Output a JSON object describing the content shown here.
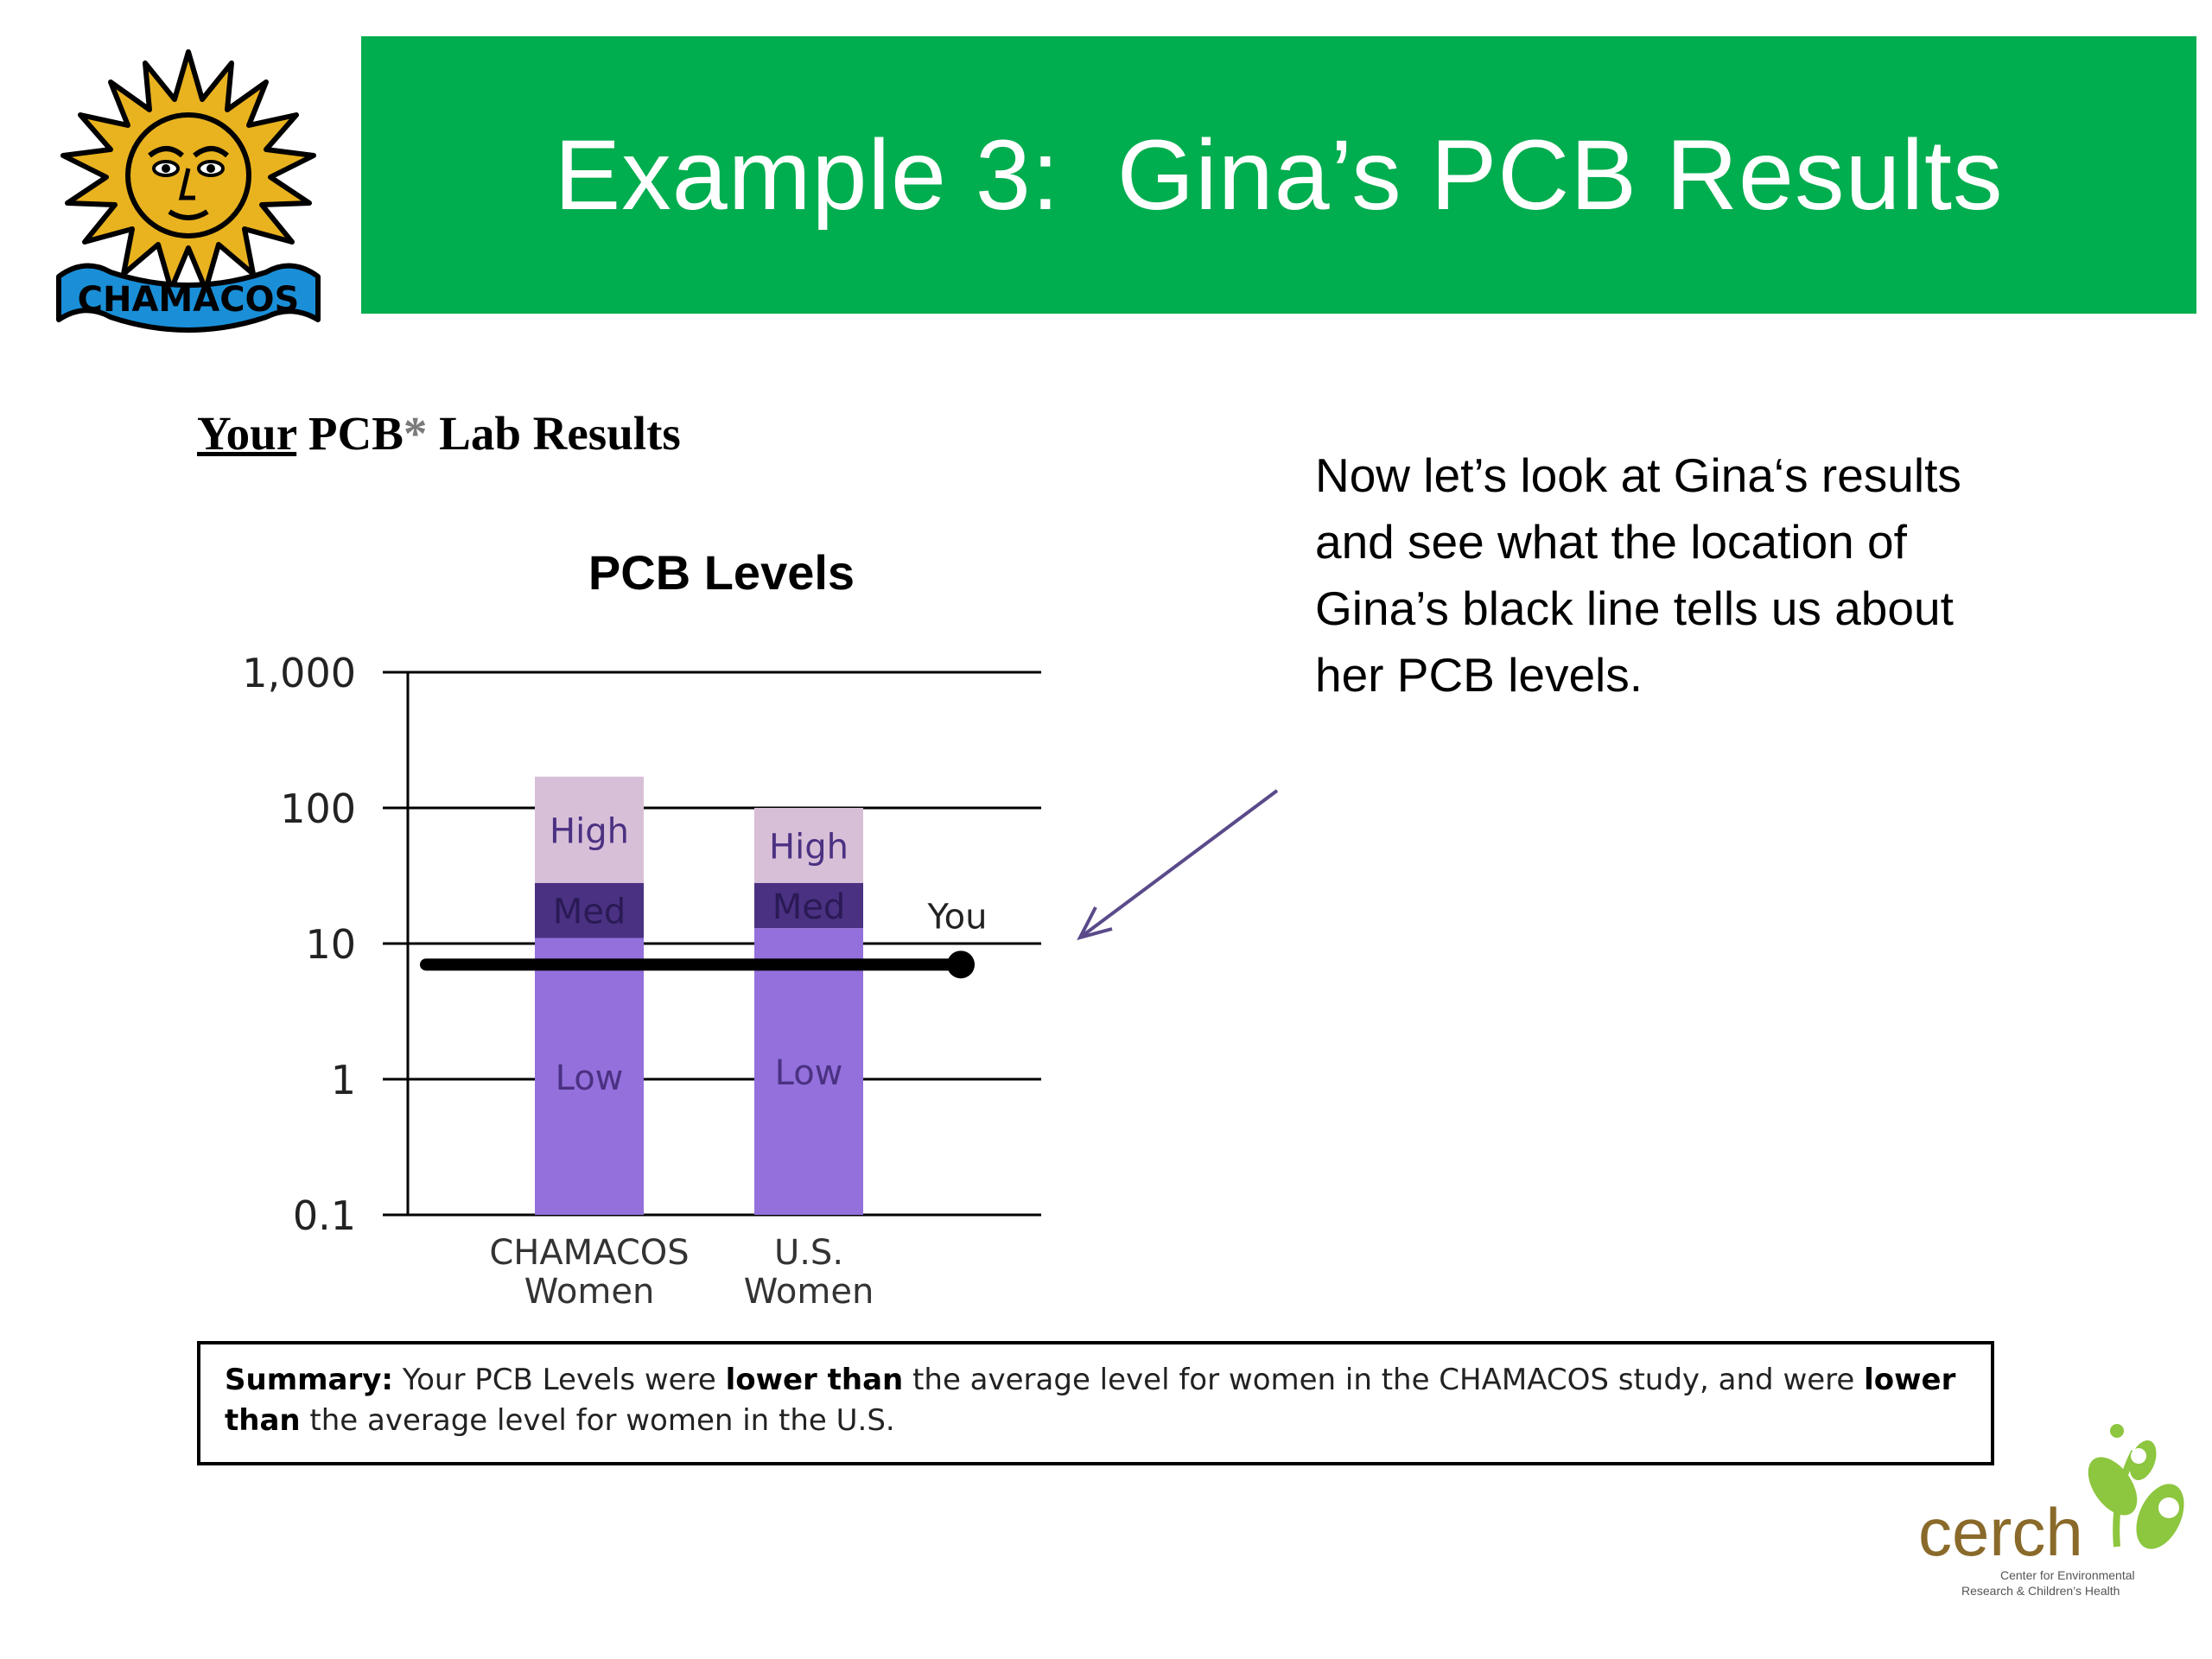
{
  "slide": {
    "title": "Example 3:  Gina’s PCB Results",
    "lab_heading": {
      "your": "Your",
      "pcb": " PCB",
      "star": "*",
      "rest": " Lab Results"
    },
    "note": "Now let’s look at Gina‘s results and see what the location of Gina’s black line tells us about her PCB levels.",
    "summary": {
      "label": "Summary:",
      "part1": " Your PCB Levels were ",
      "bold1": "lower than",
      "part2": " the average level for women in the CHAMACOS study, and were ",
      "bold2": "lower than",
      "part3": " the average level for  women in the U.S."
    },
    "logos": {
      "chamacos": "CHAMACOS",
      "cerch": "cerch",
      "cerch_tag1": "Center for Environmental",
      "cerch_tag2": "Research & Children’s Health"
    }
  },
  "colors": {
    "banner": "#00ad4f",
    "low": "#9370db",
    "med": "#4a3182",
    "high": "#d8bfd8",
    "arrow": "#5a4a8a",
    "you_line": "#000000"
  },
  "chart_data": {
    "type": "bar",
    "title": "PCB Levels",
    "scale": "log",
    "ylim": [
      0.1,
      1000
    ],
    "yticks": [
      0.1,
      1,
      10,
      100,
      1000
    ],
    "ytick_labels": [
      "0.1",
      "1",
      "10",
      "100",
      "1,000"
    ],
    "grid": true,
    "categories": [
      [
        "CHAMACOS",
        "Women"
      ],
      [
        "U.S.",
        "Women"
      ]
    ],
    "series": [
      {
        "name": "Low",
        "values": [
          11,
          13
        ]
      },
      {
        "name": "Med",
        "values": [
          28,
          28
        ]
      },
      {
        "name": "High",
        "values": [
          170,
          100
        ]
      }
    ],
    "you": {
      "label": "You",
      "value": 7
    }
  }
}
